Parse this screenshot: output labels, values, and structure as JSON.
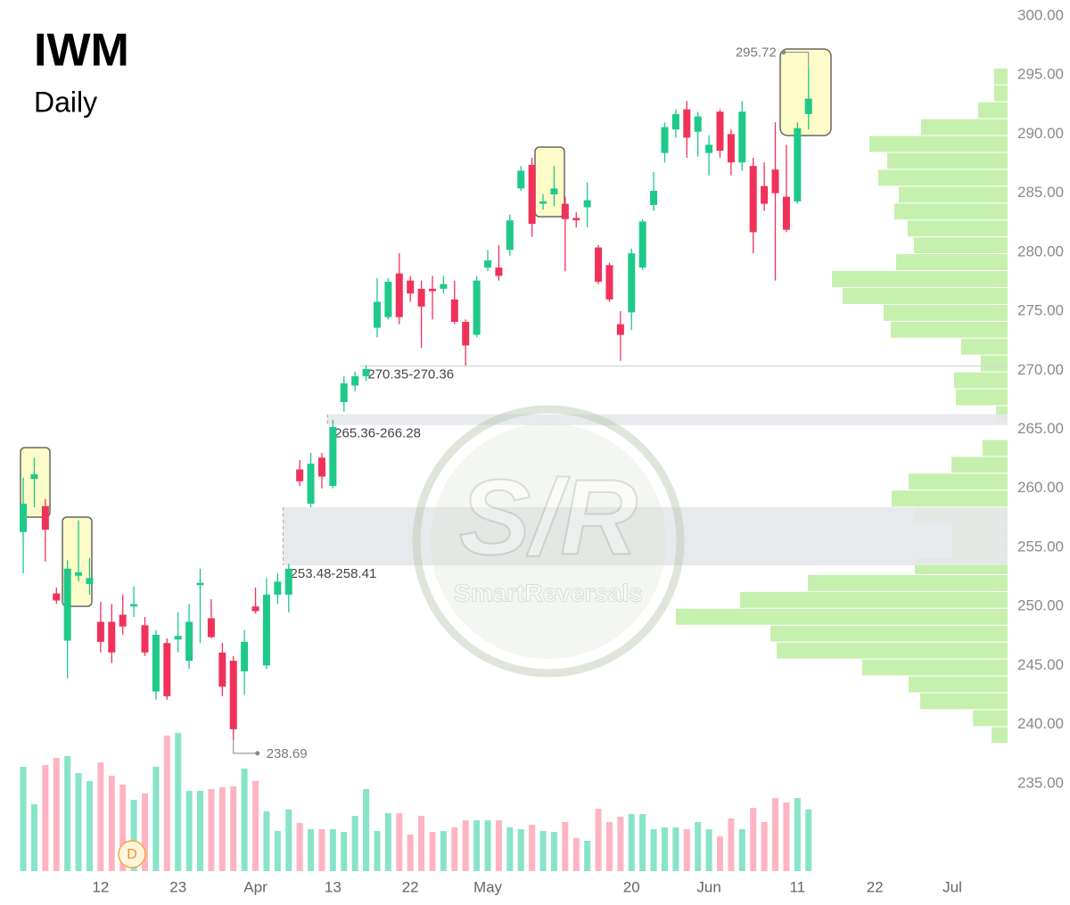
{
  "chart_data": {
    "type": "candlestick",
    "title": "IWM",
    "subtitle": "Daily",
    "watermark": {
      "mark": "S/R",
      "brand": "SmartReversals"
    },
    "badge": "D",
    "x": [
      0,
      1,
      2,
      3,
      4,
      5,
      6,
      7,
      8,
      9,
      10,
      11,
      12,
      13,
      14,
      15,
      16,
      17,
      18,
      19,
      20,
      21,
      22,
      23,
      24,
      25,
      26,
      27,
      28,
      29,
      30,
      31,
      32,
      33,
      34,
      35,
      36,
      37,
      38,
      39,
      40,
      41,
      42,
      43,
      44,
      45,
      46,
      47,
      48,
      49,
      50,
      51,
      52,
      53,
      54,
      55,
      56,
      57,
      58,
      59,
      60,
      61,
      62,
      63,
      64,
      65,
      66,
      67,
      68,
      69,
      70,
      71
    ],
    "open": [
      256.3,
      260.8,
      258.5,
      251.1,
      247.1,
      252.6,
      251.9,
      248.7,
      248.7,
      249.3,
      250.0,
      248.4,
      242.8,
      246.9,
      247.2,
      245.4,
      251.8,
      249.0,
      246.1,
      245.4,
      244.5,
      250.0,
      245.0,
      251.0,
      251.0,
      261.6,
      258.7,
      262.6,
      260.2,
      267.3,
      268.7,
      269.5,
      273.6,
      274.5,
      278.2,
      277.6,
      276.9,
      276.9,
      276.9,
      276.0,
      274.1,
      273.0,
      278.7,
      278.7,
      280.2,
      285.4,
      287.4,
      284.1,
      284.9,
      284.1,
      282.9,
      283.8,
      280.4,
      278.9,
      273.9,
      274.9,
      278.7,
      284.0,
      288.4,
      290.4,
      292.1,
      290.2,
      288.4,
      291.9,
      290.0,
      287.6,
      287.3,
      285.6,
      287.0,
      284.7,
      284.3,
      291.7
    ],
    "high": [
      260.9,
      262.6,
      259.1,
      251.6,
      253.9,
      257.3,
      254.1,
      250.4,
      250.2,
      251.0,
      251.7,
      249.1,
      248.0,
      247.3,
      249.5,
      250.2,
      253.2,
      250.6,
      246.9,
      245.8,
      248.0,
      251.6,
      252.4,
      252.8,
      253.6,
      262.4,
      263.0,
      263.0,
      265.8,
      269.5,
      269.9,
      270.4,
      277.8,
      277.8,
      279.9,
      278.0,
      277.6,
      278.0,
      278.0,
      277.6,
      274.3,
      278.0,
      280.2,
      280.6,
      283.2,
      287.3,
      288.0,
      284.9,
      287.3,
      284.7,
      283.4,
      285.9,
      280.6,
      279.1,
      275.0,
      280.3,
      282.8,
      286.8,
      291.0,
      292.1,
      292.8,
      291.9,
      289.9,
      292.1,
      290.4,
      292.8,
      288.0,
      287.6,
      291.0,
      289.1,
      291.0,
      295.72
    ],
    "low": [
      252.8,
      258.4,
      253.8,
      250.2,
      243.9,
      252.1,
      251.0,
      246.1,
      245.2,
      247.6,
      249.1,
      245.8,
      242.1,
      242.1,
      246.1,
      244.7,
      246.9,
      247.3,
      242.4,
      238.69,
      242.5,
      249.4,
      244.7,
      250.2,
      249.5,
      260.2,
      258.4,
      260.0,
      260.0,
      266.5,
      268.2,
      269.1,
      272.8,
      274.3,
      273.9,
      275.8,
      271.9,
      274.3,
      276.5,
      273.9,
      270.4,
      272.8,
      278.4,
      277.6,
      279.7,
      285.2,
      281.3,
      283.6,
      283.9,
      278.4,
      282.1,
      282.1,
      277.3,
      275.8,
      270.8,
      273.4,
      278.5,
      283.5,
      287.6,
      289.7,
      288.0,
      288.1,
      286.5,
      288.0,
      286.5,
      286.9,
      279.9,
      283.5,
      277.6,
      281.7,
      284.1,
      290.4
    ],
    "close": [
      258.7,
      261.2,
      256.5,
      250.5,
      253.2,
      252.9,
      252.4,
      247.0,
      246.1,
      248.3,
      250.2,
      246.1,
      247.6,
      242.4,
      247.5,
      248.7,
      252.0,
      247.4,
      243.2,
      239.6,
      247.0,
      249.6,
      251.0,
      252.1,
      253.2,
      260.6,
      262.1,
      261.0,
      265.2,
      268.9,
      269.5,
      270.1,
      275.8,
      277.5,
      274.5,
      276.5,
      275.4,
      276.7,
      277.3,
      274.1,
      272.1,
      277.6,
      279.3,
      278.0,
      282.7,
      286.9,
      282.4,
      284.3,
      285.4,
      282.8,
      282.7,
      284.4,
      277.5,
      276.0,
      273.0,
      279.9,
      282.6,
      285.2,
      290.6,
      291.7,
      289.7,
      291.5,
      289.1,
      288.6,
      287.6,
      291.9,
      281.7,
      284.1,
      285.0,
      281.9,
      290.5,
      293.0
    ],
    "volume": [
      117,
      75,
      119,
      127,
      129,
      110,
      101,
      122,
      107,
      97,
      80,
      87,
      117,
      152,
      155,
      90,
      90,
      92,
      94,
      95,
      115,
      101,
      67,
      45,
      69,
      54,
      47,
      47,
      47,
      44,
      62,
      92,
      45,
      65,
      65,
      41,
      62,
      44,
      45,
      49,
      57,
      57,
      57,
      57,
      49,
      47,
      52,
      45,
      44,
      55,
      37,
      34,
      70,
      55,
      61,
      64,
      64,
      47,
      49,
      49,
      47,
      55,
      47,
      39,
      59,
      47,
      71,
      55,
      82,
      77,
      82,
      69
    ],
    "up_color": "#1ec98a",
    "down_color": "#f0325a",
    "volume_up_color": "#88e4c8",
    "volume_down_color": "#ffb4c2",
    "profile": {
      "bins": [
        295.6,
        294.17,
        292.74,
        291.31,
        289.88,
        288.45,
        287.02,
        285.59,
        284.16,
        282.73,
        281.3,
        279.87,
        278.44,
        277.01,
        275.58,
        274.15,
        272.72,
        271.29,
        269.86,
        268.43,
        267.0,
        265.57,
        264.14,
        262.71,
        261.28,
        259.85,
        258.42,
        256.99,
        255.56,
        254.13,
        252.7,
        251.27,
        249.84,
        248.41,
        246.98,
        245.55,
        244.12,
        242.69,
        241.26,
        239.83,
        238.4
      ],
      "values": [
        15,
        15,
        33,
        97,
        155,
        135,
        145,
        122,
        127,
        112,
        105,
        125,
        197,
        185,
        139,
        131,
        52,
        30,
        60,
        58,
        13,
        0,
        28,
        63,
        111,
        130,
        104,
        62,
        62,
        104,
        224,
        300,
        372,
        266,
        259,
        163,
        111,
        98,
        39,
        18
      ],
      "color": "#c6f0ad"
    },
    "zones": [
      {
        "low": 270.35,
        "high": 270.36,
        "label": "270.35-270.36",
        "x_start": 31
      },
      {
        "low": 265.36,
        "high": 266.28,
        "label": "265.36-266.28",
        "x_start": 28
      },
      {
        "low": 253.48,
        "high": 258.41,
        "label": "253.48-258.41",
        "x_start": 24
      }
    ],
    "annotations": [
      {
        "value": 295.72,
        "x": 71,
        "side": "left"
      },
      {
        "value": 238.69,
        "x": 19,
        "side": "right"
      }
    ],
    "xlim": [
      -2.1,
      89
    ],
    "xticks": [
      {
        "value": 7,
        "label": "12"
      },
      {
        "value": 14,
        "label": "23"
      },
      {
        "value": 21,
        "label": "Apr"
      },
      {
        "value": 28,
        "label": "13"
      },
      {
        "value": 35,
        "label": "22"
      },
      {
        "value": 42,
        "label": "May"
      },
      {
        "value": 55,
        "label": "20"
      },
      {
        "value": 62,
        "label": "Jun"
      },
      {
        "value": 70,
        "label": "11"
      },
      {
        "value": 77,
        "label": "22"
      },
      {
        "value": 84,
        "label": "Jul"
      }
    ],
    "ylim": [
      233.7,
      300
    ],
    "yticks": [
      {
        "value": 235,
        "label": "235.00"
      },
      {
        "value": 240,
        "label": "240.00"
      },
      {
        "value": 245,
        "label": "245.00"
      },
      {
        "value": 250,
        "label": "250.00"
      },
      {
        "value": 255,
        "label": "255.00"
      },
      {
        "value": 260,
        "label": "260.00"
      },
      {
        "value": 265,
        "label": "265.00"
      },
      {
        "value": 270,
        "label": "270.00"
      },
      {
        "value": 275,
        "label": "275.00"
      },
      {
        "value": 280,
        "label": "280.00"
      },
      {
        "value": 285,
        "label": "285.00"
      },
      {
        "value": 290,
        "label": "290.00"
      },
      {
        "value": 295,
        "label": "295.00"
      },
      {
        "value": 300,
        "label": "300.00"
      }
    ]
  }
}
